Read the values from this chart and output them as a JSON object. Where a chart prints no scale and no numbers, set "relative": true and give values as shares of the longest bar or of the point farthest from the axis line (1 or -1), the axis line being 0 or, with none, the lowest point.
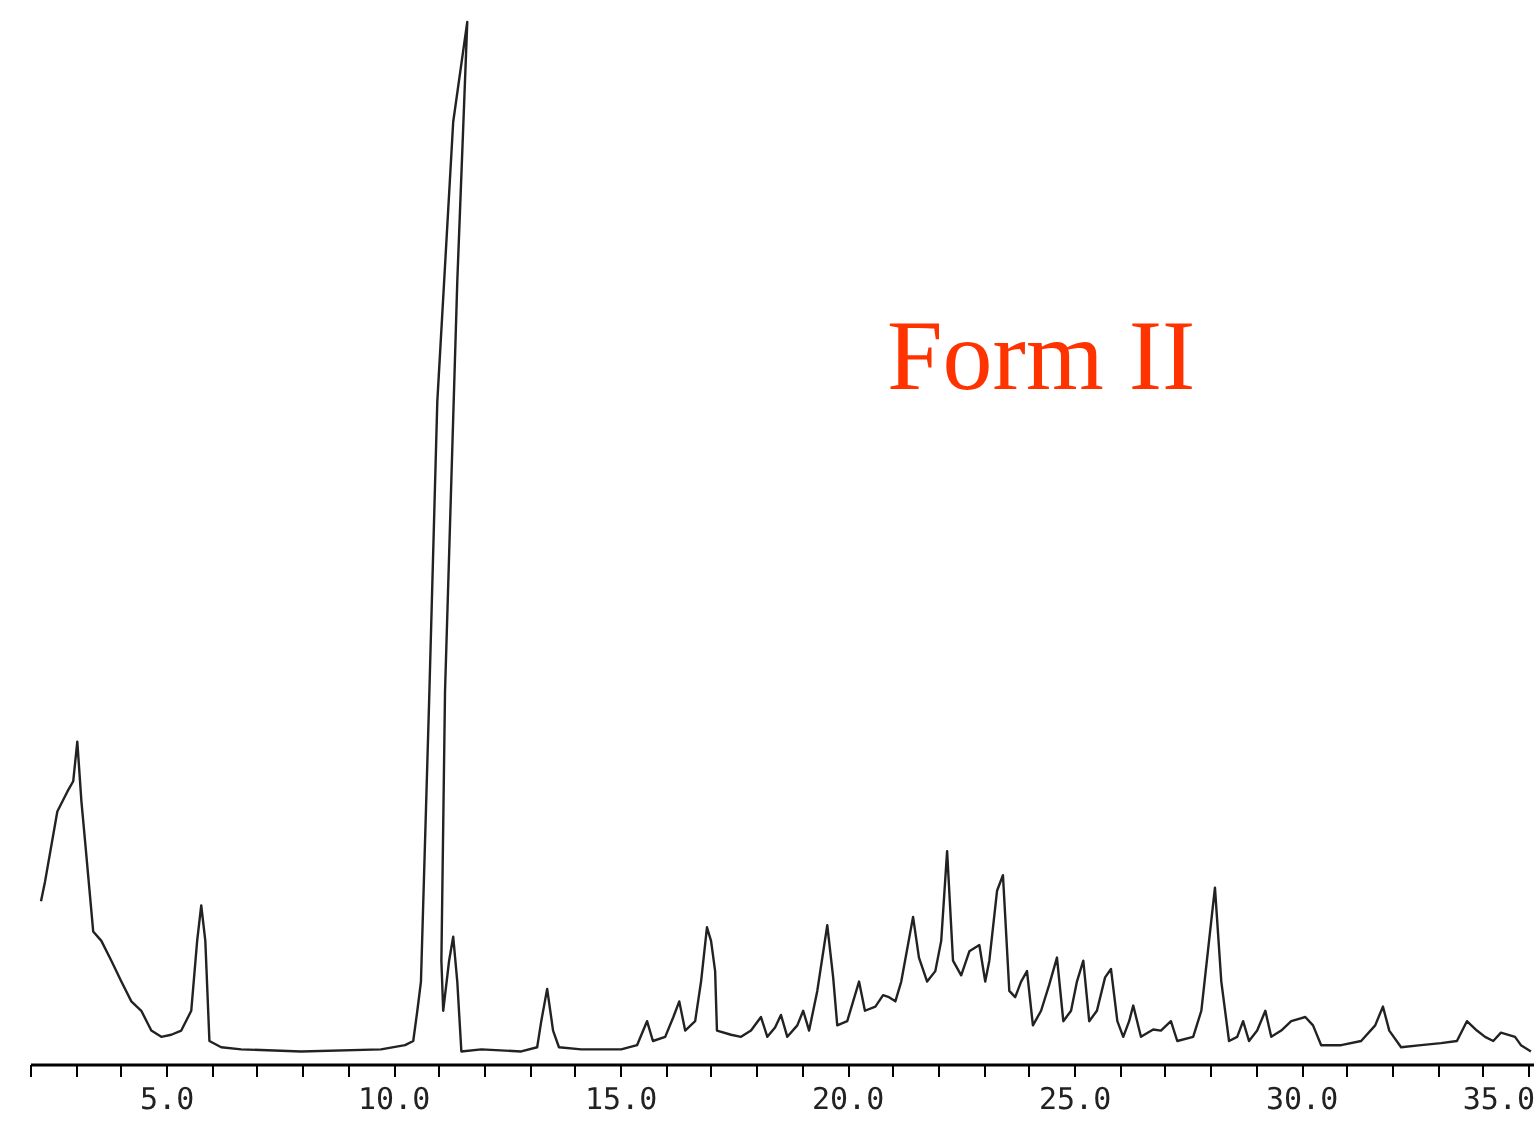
{
  "chart_data": {
    "type": "line",
    "relative": true,
    "x": [
      2.22,
      2.31,
      2.58,
      2.8,
      2.93,
      3.02,
      3.11,
      3.19,
      3.37,
      3.55,
      3.77,
      3.99,
      4.21,
      4.43,
      4.65,
      4.87,
      5.09,
      5.31,
      5.53,
      5.66,
      5.75,
      5.84,
      5.93,
      6.19,
      6.63,
      7.95,
      9.71,
      10.24,
      10.42,
      10.51,
      10.59,
      10.77,
      10.95,
      11.3,
      11.61,
      11.39,
      11.12,
      11.04,
      11.08,
      11.21,
      11.3,
      11.39,
      11.48,
      11.92,
      12.8,
      13.15,
      13.24,
      13.37,
      13.5,
      13.63,
      14.12,
      15.0,
      15.35,
      15.57,
      15.7,
      15.97,
      16.15,
      16.28,
      16.41,
      16.63,
      16.76,
      16.89,
      16.98,
      17.07,
      17.11,
      17.42,
      17.64,
      17.86,
      18.08,
      18.22,
      18.39,
      18.52,
      18.66,
      18.88,
      19.01,
      19.14,
      19.32,
      19.54,
      19.67,
      19.76,
      19.98,
      20.11,
      20.24,
      20.37,
      20.6,
      20.77,
      20.9,
      21.04,
      21.17,
      21.43,
      21.56,
      21.74,
      21.92,
      22.05,
      22.18,
      22.31,
      22.49,
      22.67,
      22.89,
      23.02,
      23.11,
      23.28,
      23.41,
      23.55,
      23.68,
      23.81,
      23.94,
      24.07,
      24.25,
      24.43,
      24.6,
      24.74,
      24.91,
      25.04,
      25.18,
      25.31,
      25.48,
      25.66,
      25.79,
      25.93,
      26.06,
      26.19,
      26.28,
      26.45,
      26.72,
      26.89,
      27.11,
      27.25,
      27.6,
      27.78,
      27.95,
      28.08,
      28.22,
      28.39,
      28.57,
      28.7,
      28.83,
      29.01,
      29.19,
      29.32,
      29.54,
      29.76,
      30.07,
      30.24,
      30.42,
      30.86,
      31.3,
      31.61,
      31.78,
      31.92,
      32.18,
      32.62,
      33.06,
      33.41,
      33.63,
      33.85,
      34.03,
      34.21,
      34.38,
      34.69,
      34.82,
      35.04
    ],
    "series": [
      {
        "color": "#222222",
        "values": [
          0.157,
          0.176,
          0.243,
          0.262,
          0.272,
          0.31,
          0.253,
          0.215,
          0.128,
          0.119,
          0.1,
          0.08,
          0.061,
          0.052,
          0.033,
          0.027,
          0.029,
          0.033,
          0.052,
          0.119,
          0.153,
          0.119,
          0.023,
          0.017,
          0.015,
          0.013,
          0.015,
          0.019,
          0.023,
          0.052,
          0.08,
          0.349,
          0.636,
          0.904,
          1,
          0.751,
          0.358,
          0.1,
          0.052,
          0.1,
          0.123,
          0.08,
          0.013,
          0.015,
          0.013,
          0.017,
          0.042,
          0.073,
          0.033,
          0.017,
          0.015,
          0.015,
          0.019,
          0.042,
          0.023,
          0.027,
          0.046,
          0.061,
          0.033,
          0.042,
          0.08,
          0.132,
          0.119,
          0.09,
          0.033,
          0.029,
          0.027,
          0.033,
          0.046,
          0.027,
          0.036,
          0.048,
          0.027,
          0.038,
          0.052,
          0.033,
          0.071,
          0.134,
          0.084,
          0.038,
          0.042,
          0.061,
          0.08,
          0.052,
          0.056,
          0.067,
          0.065,
          0.061,
          0.08,
          0.142,
          0.103,
          0.08,
          0.09,
          0.119,
          0.205,
          0.1,
          0.086,
          0.109,
          0.115,
          0.08,
          0.1,
          0.167,
          0.182,
          0.071,
          0.065,
          0.08,
          0.09,
          0.038,
          0.052,
          0.077,
          0.103,
          0.042,
          0.052,
          0.08,
          0.1,
          0.042,
          0.052,
          0.084,
          0.092,
          0.042,
          0.027,
          0.042,
          0.057,
          0.027,
          0.034,
          0.033,
          0.042,
          0.023,
          0.027,
          0.052,
          0.119,
          0.17,
          0.08,
          0.023,
          0.027,
          0.042,
          0.023,
          0.033,
          0.052,
          0.027,
          0.033,
          0.042,
          0.046,
          0.038,
          0.019,
          0.019,
          0.023,
          0.038,
          0.056,
          0.033,
          0.017,
          0.019,
          0.021,
          0.023,
          0.042,
          0.033,
          0.027,
          0.023,
          0.031,
          0.027,
          0.019,
          0.013
        ]
      }
    ],
    "xlim": [
      2.0,
      35.13
    ],
    "xticks": [
      {
        "value": 2,
        "label": null
      },
      {
        "value": 3,
        "label": null
      },
      {
        "value": 4,
        "label": null
      },
      {
        "value": 5,
        "label": "5.0"
      },
      {
        "value": 6,
        "label": null
      },
      {
        "value": 7,
        "label": null
      },
      {
        "value": 8,
        "label": null
      },
      {
        "value": 9,
        "label": null
      },
      {
        "value": 10,
        "label": "10.0"
      },
      {
        "value": 11,
        "label": null
      },
      {
        "value": 12,
        "label": null
      },
      {
        "value": 13,
        "label": null
      },
      {
        "value": 14,
        "label": null
      },
      {
        "value": 15,
        "label": "15.0"
      },
      {
        "value": 16,
        "label": null
      },
      {
        "value": 17,
        "label": null
      },
      {
        "value": 18,
        "label": null
      },
      {
        "value": 19,
        "label": null
      },
      {
        "value": 20,
        "label": "20.0"
      },
      {
        "value": 21,
        "label": null
      },
      {
        "value": 22,
        "label": null
      },
      {
        "value": 23,
        "label": null
      },
      {
        "value": 24,
        "label": null
      },
      {
        "value": 25,
        "label": "25.0"
      },
      {
        "value": 26,
        "label": null
      },
      {
        "value": 27,
        "label": null
      },
      {
        "value": 28,
        "label": null
      },
      {
        "value": 29,
        "label": null
      },
      {
        "value": 30,
        "label": "30.0"
      },
      {
        "value": 31,
        "label": null
      },
      {
        "value": 32,
        "label": null
      },
      {
        "value": 33,
        "label": null
      },
      {
        "value": 34,
        "label": null
      },
      {
        "value": 35,
        "label": "35.0"
      }
    ],
    "tick_labels": "x",
    "grid": false,
    "annotations": [
      "Form II"
    ]
  }
}
